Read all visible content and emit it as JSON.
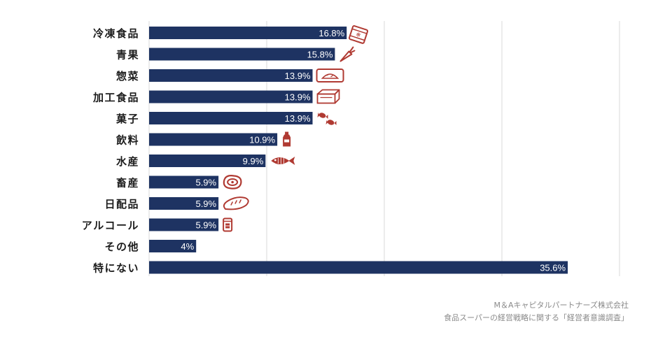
{
  "chart_data": {
    "type": "bar",
    "orientation": "horizontal",
    "categories": [
      "冷凍食品",
      "青果",
      "惣菜",
      "加工食品",
      "菓子",
      "飲料",
      "水産",
      "畜産",
      "日配品",
      "アルコール",
      "その他",
      "特にない"
    ],
    "values": [
      16.8,
      15.8,
      13.9,
      13.9,
      13.9,
      10.9,
      9.9,
      5.9,
      5.9,
      5.9,
      4,
      35.6
    ],
    "value_labels": [
      "16.8%",
      "15.8%",
      "13.9%",
      "13.9%",
      "13.9%",
      "10.9%",
      "9.9%",
      "5.9%",
      "5.9%",
      "5.9%",
      "4%",
      "35.6%"
    ],
    "icons": [
      "frozen-bag-icon",
      "carrot-icon",
      "prepared-food-tray-icon",
      "processed-food-box-icon",
      "candy-icon",
      "bottle-icon",
      "fish-icon",
      "meat-icon",
      "bread-icon",
      "can-icon",
      "",
      ""
    ],
    "xlim": [
      0,
      40
    ],
    "grid": true,
    "bar_color": "#1e3362",
    "icon_color": "#b03a32",
    "gridline_color": "#d9d9d9"
  },
  "source": {
    "line1": "M＆Aキャピタルパートナーズ株式会社",
    "line2": "食品スーパーの経営戦略に関する「経営者意識調査」"
  }
}
